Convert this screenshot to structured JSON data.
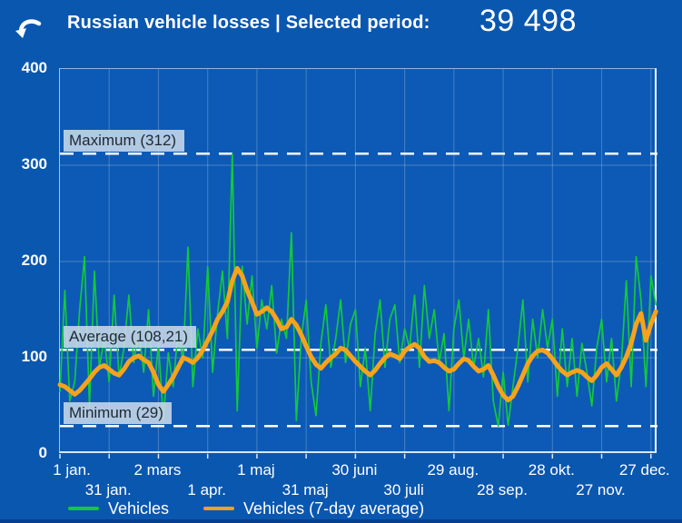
{
  "header": {
    "title": "Russian vehicle losses | Selected period:",
    "selected_period_value": "39 498"
  },
  "colors": {
    "background": "#0a57b0",
    "plot_background": "#0c5ab5",
    "grid": "rgba(255,255,255,0.20)",
    "axis": "rgba(255,255,255,0.85)",
    "vehicles_line": "#14c83c",
    "average_line": "#f7a21b",
    "ref_line": "#ffffff",
    "ref_label_bg": "#c9d8e9",
    "ref_label_text": "#1e2933"
  },
  "chart_data": {
    "type": "line",
    "title": "Russian vehicle losses",
    "x_unit": "day_of_year",
    "x_step": 3,
    "x_domain": [
      0,
      364
    ],
    "ylim": [
      0,
      400
    ],
    "yticks": [
      0,
      100,
      200,
      300,
      400
    ],
    "grid": true,
    "legend_position": "bottom",
    "xticks": [
      {
        "day": 0,
        "label": "1 jan.",
        "row": 1
      },
      {
        "day": 30,
        "label": "31 jan.",
        "row": 2
      },
      {
        "day": 60,
        "label": "2 mars",
        "row": 1
      },
      {
        "day": 90,
        "label": "1 apr.",
        "row": 2
      },
      {
        "day": 120,
        "label": "1 maj",
        "row": 1
      },
      {
        "day": 150,
        "label": "31 maj",
        "row": 2
      },
      {
        "day": 180,
        "label": "30 juni",
        "row": 1
      },
      {
        "day": 210,
        "label": "30 juli",
        "row": 2
      },
      {
        "day": 240,
        "label": "29 aug.",
        "row": 1
      },
      {
        "day": 270,
        "label": "28 sep.",
        "row": 2
      },
      {
        "day": 300,
        "label": "28 okt.",
        "row": 1
      },
      {
        "day": 330,
        "label": "27 nov.",
        "row": 2
      },
      {
        "day": 360,
        "label": "27 dec.",
        "row": 1
      }
    ],
    "ref_lines": [
      {
        "name": "maximum",
        "label": "Maximum (312)",
        "value": 312
      },
      {
        "name": "average",
        "label": "Average (108,21)",
        "value": 108.21
      },
      {
        "name": "minimum",
        "label": "Minimum (29)",
        "value": 29
      }
    ],
    "series": [
      {
        "name": "Vehicles",
        "color": "#14c83c",
        "stroke_width": 1.7,
        "values": [
          65,
          170,
          55,
          75,
          150,
          205,
          50,
          190,
          90,
          120,
          75,
          165,
          80,
          110,
          165,
          95,
          130,
          85,
          150,
          60,
          115,
          35,
          105,
          70,
          130,
          95,
          215,
          70,
          130,
          100,
          195,
          85,
          145,
          190,
          120,
          312,
          45,
          195,
          135,
          185,
          110,
          160,
          130,
          175,
          105,
          140,
          120,
          230,
          35,
          120,
          160,
          75,
          40,
          115,
          155,
          90,
          120,
          160,
          95,
          135,
          150,
          70,
          110,
          45,
          125,
          160,
          90,
          140,
          155,
          95,
          130,
          110,
          165,
          90,
          175,
          120,
          150,
          95,
          125,
          45,
          130,
          160,
          100,
          140,
          90,
          120,
          80,
          150,
          55,
          29,
          85,
          30,
          70,
          110,
          160,
          75,
          140,
          100,
          150,
          110,
          140,
          60,
          130,
          70,
          120,
          60,
          115,
          85,
          50,
          110,
          140,
          75,
          120,
          55,
          95,
          180,
          70,
          205,
          160,
          70,
          185,
          155
        ]
      },
      {
        "name": "Vehicles (7-day average)",
        "color": "#f7a21b",
        "stroke_width": 5,
        "values": [
          72,
          70,
          66,
          62,
          66,
          72,
          78,
          85,
          90,
          92,
          88,
          84,
          82,
          88,
          96,
          100,
          102,
          98,
          95,
          85,
          72,
          65,
          72,
          80,
          90,
          100,
          98,
          95,
          100,
          108,
          118,
          128,
          140,
          148,
          158,
          180,
          193,
          185,
          170,
          158,
          145,
          148,
          152,
          148,
          140,
          130,
          132,
          140,
          134,
          124,
          112,
          101,
          93,
          89,
          95,
          100,
          104,
          110,
          108,
          102,
          96,
          91,
          86,
          82,
          87,
          94,
          100,
          104,
          102,
          99,
          107,
          111,
          114,
          110,
          101,
          96,
          97,
          95,
          90,
          86,
          88,
          94,
          99,
          97,
          91,
          86,
          88,
          92,
          82,
          70,
          61,
          56,
          60,
          70,
          82,
          94,
          102,
          107,
          108,
          105,
          99,
          92,
          86,
          82,
          85,
          87,
          85,
          80,
          76,
          82,
          90,
          94,
          88,
          82,
          90,
          101,
          115,
          135,
          146,
          118,
          135,
          148
        ]
      }
    ]
  }
}
